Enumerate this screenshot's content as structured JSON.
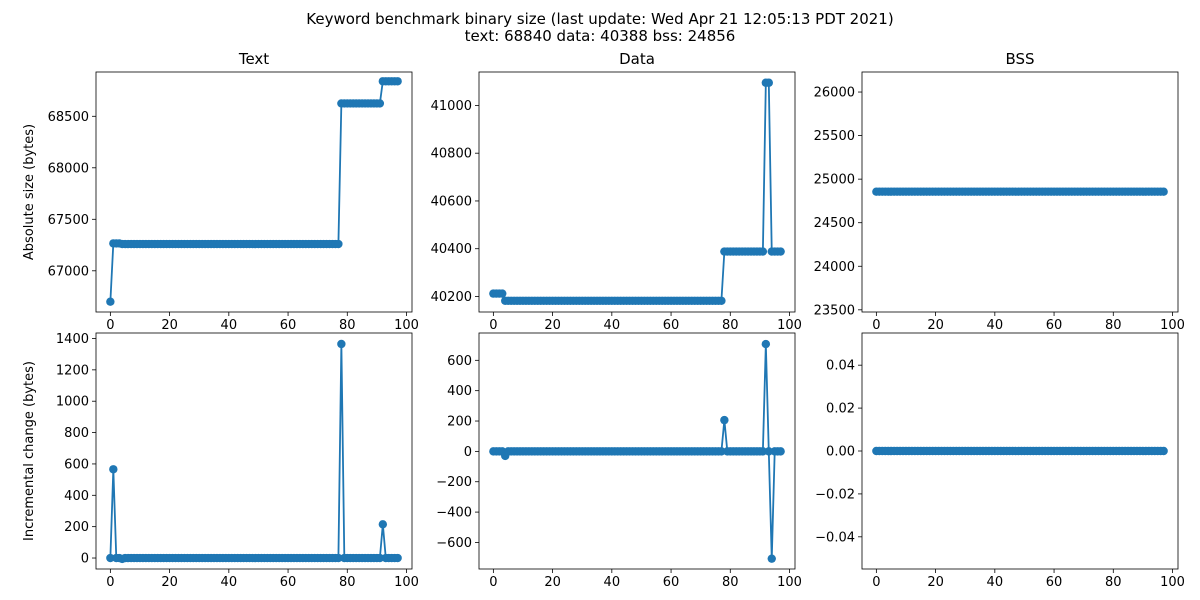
{
  "figure": {
    "title_line1": "Keyword benchmark binary size (last update: Wed Apr 21 12:05:13 PDT 2021)",
    "title_line2": "text: 68840 data: 40388 bss: 24856",
    "series_color": "#1f77b4"
  },
  "chart_data": [
    {
      "id": "text-absolute",
      "type": "line",
      "title": "Text",
      "ylabel": "Absolute size (bytes)",
      "xlim": [
        -4.85,
        101.85
      ],
      "ylim": [
        66600,
        68930
      ],
      "xticks": [
        0,
        20,
        40,
        60,
        80,
        100
      ],
      "yticks": [
        67000,
        67500,
        68000,
        68500
      ],
      "points": [
        [
          0,
          66700
        ],
        [
          1,
          67266
        ],
        [
          2,
          67266
        ],
        [
          3,
          67266
        ],
        [
          4,
          67260
        ],
        [
          5,
          67260
        ],
        [
          76,
          67260
        ],
        [
          77,
          67260
        ],
        [
          78,
          68625
        ],
        [
          79,
          68625
        ],
        [
          91,
          68625
        ],
        [
          92,
          68840
        ],
        [
          93,
          68840
        ],
        [
          97,
          68840
        ]
      ]
    },
    {
      "id": "data-absolute",
      "type": "line",
      "title": "Data",
      "ylabel": "",
      "xlim": [
        -4.85,
        101.85
      ],
      "ylim": [
        40135,
        41140
      ],
      "xticks": [
        0,
        20,
        40,
        60,
        80,
        100
      ],
      "yticks": [
        40200,
        40400,
        40600,
        40800,
        41000
      ],
      "points": [
        [
          0,
          40212
        ],
        [
          1,
          40212
        ],
        [
          2,
          40212
        ],
        [
          3,
          40212
        ],
        [
          4,
          40182
        ],
        [
          5,
          40182
        ],
        [
          76,
          40182
        ],
        [
          77,
          40182
        ],
        [
          78,
          40388
        ],
        [
          79,
          40388
        ],
        [
          91,
          40388
        ],
        [
          92,
          41095
        ],
        [
          93,
          41095
        ],
        [
          94,
          40388
        ],
        [
          95,
          40388
        ],
        [
          97,
          40388
        ]
      ]
    },
    {
      "id": "bss-absolute",
      "type": "line",
      "title": "BSS",
      "ylabel": "",
      "xlim": [
        -4.85,
        101.85
      ],
      "ylim": [
        23475,
        26230
      ],
      "xticks": [
        0,
        20,
        40,
        60,
        80,
        100
      ],
      "yticks": [
        23500,
        24000,
        24500,
        25000,
        25500,
        26000
      ],
      "points": [
        [
          0,
          24856
        ],
        [
          97,
          24856
        ]
      ]
    },
    {
      "id": "text-incremental",
      "type": "line",
      "title": "",
      "ylabel": "Incremental change (bytes)",
      "xlim": [
        -4.85,
        101.85
      ],
      "ylim": [
        -70,
        1435
      ],
      "xticks": [
        0,
        20,
        40,
        60,
        80,
        100
      ],
      "yticks": [
        0,
        200,
        400,
        600,
        800,
        1000,
        1200,
        1400
      ],
      "points": [
        [
          0,
          0
        ],
        [
          1,
          566
        ],
        [
          2,
          0
        ],
        [
          3,
          0
        ],
        [
          4,
          -6
        ],
        [
          5,
          0
        ],
        [
          77,
          0
        ],
        [
          78,
          1365
        ],
        [
          79,
          0
        ],
        [
          91,
          0
        ],
        [
          92,
          215
        ],
        [
          93,
          0
        ],
        [
          97,
          0
        ]
      ]
    },
    {
      "id": "data-incremental",
      "type": "line",
      "title": "",
      "ylabel": "",
      "xlim": [
        -4.85,
        101.85
      ],
      "ylim": [
        -775,
        780
      ],
      "xticks": [
        0,
        20,
        40,
        60,
        80,
        100
      ],
      "yticks": [
        -600,
        -400,
        -200,
        0,
        200,
        400,
        600
      ],
      "points": [
        [
          0,
          0
        ],
        [
          3,
          0
        ],
        [
          4,
          -30
        ],
        [
          5,
          0
        ],
        [
          77,
          0
        ],
        [
          78,
          206
        ],
        [
          79,
          0
        ],
        [
          91,
          0
        ],
        [
          92,
          707
        ],
        [
          93,
          0
        ],
        [
          94,
          -707
        ],
        [
          95,
          0
        ],
        [
          97,
          0
        ]
      ]
    },
    {
      "id": "bss-incremental",
      "type": "line",
      "title": "",
      "ylabel": "",
      "xlim": [
        -4.85,
        101.85
      ],
      "ylim": [
        -0.055,
        0.055
      ],
      "xticks": [
        0,
        20,
        40,
        60,
        80,
        100
      ],
      "yticks": [
        -0.04,
        -0.02,
        0.0,
        0.02,
        0.04
      ],
      "ytick_decimals": 2,
      "points": [
        [
          0,
          0
        ],
        [
          97,
          0
        ]
      ]
    }
  ]
}
